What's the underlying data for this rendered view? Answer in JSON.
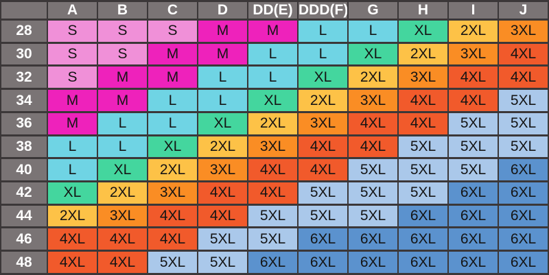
{
  "chart_data": {
    "type": "table",
    "description": "Size conversion grid: cup-size columns vs band-size rows, each cell gives a garment size with color coding",
    "corner_label": "",
    "columns": [
      "A",
      "B",
      "C",
      "D",
      "DD(E)",
      "DDD(F)",
      "G",
      "H",
      "I",
      "J"
    ],
    "row_labels": [
      "28",
      "30",
      "32",
      "34",
      "36",
      "38",
      "40",
      "42",
      "44",
      "46",
      "48"
    ],
    "rows": [
      {
        "label": "28",
        "cells": [
          "S",
          "S",
          "S",
          "M",
          "M",
          "L",
          "L",
          "XL",
          "2XL",
          "3XL"
        ]
      },
      {
        "label": "30",
        "cells": [
          "S",
          "S",
          "M",
          "M",
          "L",
          "L",
          "XL",
          "2XL",
          "3XL",
          "4XL"
        ]
      },
      {
        "label": "32",
        "cells": [
          "S",
          "M",
          "M",
          "L",
          "L",
          "XL",
          "2XL",
          "3XL",
          "4XL",
          "4XL"
        ]
      },
      {
        "label": "34",
        "cells": [
          "M",
          "M",
          "L",
          "L",
          "XL",
          "2XL",
          "3XL",
          "4XL",
          "4XL",
          "5XL"
        ]
      },
      {
        "label": "36",
        "cells": [
          "M",
          "L",
          "L",
          "XL",
          "2XL",
          "3XL",
          "4XL",
          "4XL",
          "5XL",
          "5XL"
        ]
      },
      {
        "label": "38",
        "cells": [
          "L",
          "L",
          "XL",
          "2XL",
          "3XL",
          "4XL",
          "4XL",
          "5XL",
          "5XL",
          "5XL"
        ]
      },
      {
        "label": "40",
        "cells": [
          "L",
          "XL",
          "2XL",
          "3XL",
          "4XL",
          "4XL",
          "5XL",
          "5XL",
          "5XL",
          "6XL"
        ]
      },
      {
        "label": "42",
        "cells": [
          "XL",
          "2XL",
          "3XL",
          "4XL",
          "4XL",
          "5XL",
          "5XL",
          "5XL",
          "6XL",
          "6XL"
        ]
      },
      {
        "label": "44",
        "cells": [
          "2XL",
          "3XL",
          "4XL",
          "4XL",
          "5XL",
          "5XL",
          "5XL",
          "6XL",
          "6XL",
          "6XL"
        ]
      },
      {
        "label": "46",
        "cells": [
          "4XL",
          "4XL",
          "4XL",
          "5XL",
          "5XL",
          "6XL",
          "6XL",
          "6XL",
          "6XL",
          "6XL"
        ]
      },
      {
        "label": "48",
        "cells": [
          "4XL",
          "4XL",
          "5XL",
          "5XL",
          "6XL",
          "6XL",
          "6XL",
          "6XL",
          "6XL",
          "6XL"
        ]
      }
    ],
    "cell_colors": {
      "S": "#f090d8",
      "M": "#ee22bb",
      "L": "#6fd4e4",
      "XL": "#44d69e",
      "2XL": "#fdc247",
      "3XL": "#fa8d24",
      "4XL": "#f15a2b",
      "5XL": "#aac8ea",
      "6XL": "#5b92ce"
    },
    "layout_colors": {
      "header_bg": "#7a7475",
      "header_text": "#ffffff",
      "cell_text": "#151515",
      "grid": "#3b3738"
    }
  }
}
